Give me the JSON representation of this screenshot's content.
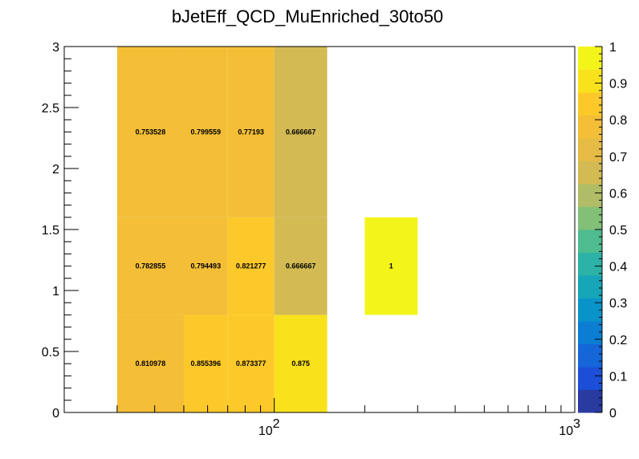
{
  "chart_data": {
    "type": "heatmap",
    "title": "bJetEff_QCD_MuEnriched_30to50",
    "x_scale": "log",
    "xlim": [
      20,
      1000
    ],
    "ylim": [
      0,
      3
    ],
    "x_ticks": [
      {
        "value": 100,
        "base": "10",
        "exp": "2"
      },
      {
        "value": 1000,
        "base": "10",
        "exp": "3"
      }
    ],
    "y_ticks": [
      "0",
      "0.5",
      "1",
      "1.5",
      "2",
      "2.5",
      "3"
    ],
    "zlim": [
      0,
      1
    ],
    "colorbar_ticks": [
      "0",
      "0.1",
      "0.2",
      "0.3",
      "0.4",
      "0.5",
      "0.6",
      "0.7",
      "0.8",
      "0.9",
      "1"
    ],
    "colorbar_colors": [
      "#293ba1",
      "#1c4ed7",
      "#1566d9",
      "#0b7ed4",
      "#0994c9",
      "#17a5b8",
      "#2cb2a6",
      "#4fbb90",
      "#82bf77",
      "#b0bd66",
      "#d3ba53",
      "#e6bb45",
      "#f4be37",
      "#fdc92a",
      "#f9e11c",
      "#f3f51a"
    ],
    "cells": [
      {
        "x0": 30,
        "x1": 50,
        "y0": 0,
        "y1": 0.8,
        "value": 0.810978,
        "label": "0.810978"
      },
      {
        "x0": 50,
        "x1": 70,
        "y0": 0,
        "y1": 0.8,
        "value": 0.855396,
        "label": "0.855396"
      },
      {
        "x0": 70,
        "x1": 100,
        "y0": 0,
        "y1": 0.8,
        "value": 0.873377,
        "label": "0.873377"
      },
      {
        "x0": 100,
        "x1": 150,
        "y0": 0,
        "y1": 0.8,
        "value": 0.875,
        "label": "0.875"
      },
      {
        "x0": 30,
        "x1": 50,
        "y0": 0.8,
        "y1": 1.6,
        "value": 0.782855,
        "label": "0.782855"
      },
      {
        "x0": 50,
        "x1": 70,
        "y0": 0.8,
        "y1": 1.6,
        "value": 0.794493,
        "label": "0.794493"
      },
      {
        "x0": 70,
        "x1": 100,
        "y0": 0.8,
        "y1": 1.6,
        "value": 0.821277,
        "label": "0.821277"
      },
      {
        "x0": 100,
        "x1": 150,
        "y0": 0.8,
        "y1": 1.6,
        "value": 0.666667,
        "label": "0.666667"
      },
      {
        "x0": 200,
        "x1": 300,
        "y0": 0.8,
        "y1": 1.6,
        "value": 1,
        "label": "1"
      },
      {
        "x0": 30,
        "x1": 50,
        "y0": 1.6,
        "y1": 3,
        "value": 0.753528,
        "label": "0.753528"
      },
      {
        "x0": 50,
        "x1": 70,
        "y0": 1.6,
        "y1": 3,
        "value": 0.799559,
        "label": "0.799559"
      },
      {
        "x0": 70,
        "x1": 100,
        "y0": 1.6,
        "y1": 3,
        "value": 0.77193,
        "label": "0.77193"
      },
      {
        "x0": 100,
        "x1": 150,
        "y0": 1.6,
        "y1": 3,
        "value": 0.666667,
        "label": "0.666667"
      }
    ]
  }
}
